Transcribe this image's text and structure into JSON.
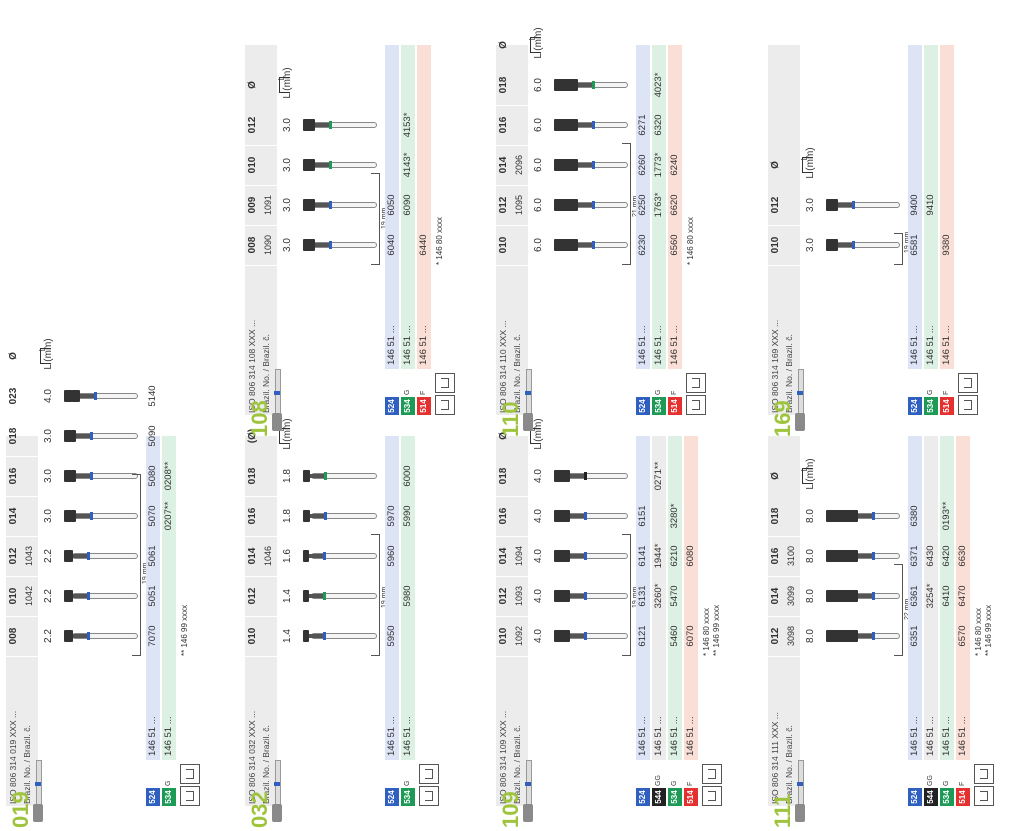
{
  "colors": {
    "c524": "#2f5fbf",
    "c534": "#1e9a57",
    "c514": "#e53030",
    "c544": "#222222",
    "blue_bg": "#dce4f6",
    "green_bg": "#dcf0e3",
    "red_bg": "#fadfd6",
    "title": "#9dc43c"
  },
  "labels": {
    "brazil_no": "Brazil. No. / Brazil. č.",
    "diameter": "Ø",
    "length": "L (mm)",
    "l": "L"
  },
  "panels": [
    {
      "id": "019",
      "iso": "ISO 806 314 019 XXX ...",
      "sizes": [
        "008",
        "010",
        "012",
        "014",
        "016",
        "018",
        "023"
      ],
      "brazil": [
        "",
        "1042",
        "1043",
        "",
        "",
        "",
        ""
      ],
      "lengths": [
        "2.2",
        "2.2",
        "2.2",
        "3.0",
        "3.0",
        "3.0",
        "4.0"
      ],
      "scale": "19 mm",
      "rows": [
        {
          "code": "524",
          "grit": "",
          "color": "blue",
          "brazil": "146 51 ...",
          "values": [
            "7070",
            "5051",
            "5061",
            "5070",
            "5080",
            "5090",
            "5140"
          ]
        },
        {
          "code": "534",
          "grit": "G",
          "color": "green",
          "brazil": "146 51 ...",
          "values": [
            "",
            "",
            "",
            "0207**",
            "0208**",
            "",
            ""
          ]
        }
      ],
      "notes": [
        "** 146 99 xxxx"
      ]
    },
    {
      "id": "032",
      "iso": "ISO 806 314 032 XXX ...",
      "sizes": [
        "010",
        "012",
        "014",
        "016",
        "018"
      ],
      "brazil": [
        "",
        "",
        "1046",
        "",
        ""
      ],
      "lengths": [
        "1.4",
        "1.4",
        "1.6",
        "1.8",
        "1.8"
      ],
      "diameter_label": "(Ø)",
      "scale": "19 mm",
      "rows": [
        {
          "code": "524",
          "grit": "",
          "color": "blue",
          "brazil": "146 51 ...",
          "values": [
            "5950",
            "",
            "5960",
            "5970",
            ""
          ]
        },
        {
          "code": "534",
          "grit": "G",
          "color": "green",
          "brazil": "146 51 ...",
          "values": [
            "",
            "5980",
            "",
            "5990",
            "6000"
          ]
        }
      ],
      "notes": []
    },
    {
      "id": "109",
      "iso": "ISO 806 314 109 XXX ...",
      "sizes": [
        "010",
        "012",
        "014",
        "016",
        "018"
      ],
      "brazil": [
        "1092",
        "1093",
        "1094",
        "",
        ""
      ],
      "lengths": [
        "4.0",
        "4.0",
        "4.0",
        "4.0",
        "4.0"
      ],
      "scale": "19 mm",
      "rows": [
        {
          "code": "524",
          "grit": "",
          "color": "blue",
          "brazil": "146 51 ...",
          "values": [
            "6121",
            "6131",
            "6141",
            "6151",
            ""
          ]
        },
        {
          "code": "544",
          "grit": "GG",
          "color": "black",
          "brazil": "146 51 ...",
          "values": [
            "",
            "3260*",
            "1944*",
            "",
            "0271**"
          ]
        },
        {
          "code": "534",
          "grit": "G",
          "color": "green",
          "brazil": "146 51 ...",
          "values": [
            "5460",
            "5470",
            "6210",
            "3280*",
            ""
          ]
        },
        {
          "code": "514",
          "grit": "F",
          "color": "red",
          "brazil": "146 51 ...",
          "values": [
            "6070",
            "",
            "6080",
            "",
            ""
          ]
        }
      ],
      "notes": [
        "* 146 80 xxxx",
        "** 146 99 xxxx"
      ]
    },
    {
      "id": "111",
      "iso": "ISO 806 314 111 XXX ...",
      "sizes": [
        "012",
        "014",
        "016",
        "018"
      ],
      "brazil": [
        "3098",
        "3099",
        "3100",
        ""
      ],
      "lengths": [
        "8.0",
        "8.0",
        "8.0",
        "8.0"
      ],
      "scale": "22 mm",
      "rows": [
        {
          "code": "524",
          "grit": "",
          "color": "blue",
          "brazil": "146 51 ...",
          "values": [
            "6351",
            "6361",
            "6371",
            "6380"
          ]
        },
        {
          "code": "544",
          "grit": "GG",
          "color": "black",
          "brazil": "146 51 ...",
          "values": [
            "",
            "3254*",
            "6430",
            ""
          ]
        },
        {
          "code": "534",
          "grit": "G",
          "color": "green",
          "brazil": "146 51 ...",
          "values": [
            "",
            "6410",
            "6420",
            "0193**"
          ]
        },
        {
          "code": "514",
          "grit": "F",
          "color": "red",
          "brazil": "146 51 ...",
          "values": [
            "6570",
            "6470",
            "6630",
            ""
          ]
        }
      ],
      "notes": [
        "* 146 80 xxxx",
        "** 146 99 xxxx"
      ]
    },
    {
      "id": "108",
      "iso": "ISO 806 314 108 XXX ...",
      "sizes": [
        "008",
        "009",
        "010",
        "012"
      ],
      "brazil": [
        "1090",
        "1091",
        "",
        ""
      ],
      "lengths": [
        "3.0",
        "3.0",
        "3.0",
        "3.0"
      ],
      "scale": "19 mm",
      "rows": [
        {
          "code": "524",
          "grit": "",
          "color": "blue",
          "brazil": "146 51 ...",
          "values": [
            "6040",
            "6050",
            "",
            ""
          ]
        },
        {
          "code": "534",
          "grit": "G",
          "color": "green",
          "brazil": "146 51 ...",
          "values": [
            "",
            "6090",
            "4143*",
            "4153*"
          ]
        },
        {
          "code": "514",
          "grit": "F",
          "color": "red",
          "brazil": "146 51 ...",
          "values": [
            "6440",
            "",
            "",
            ""
          ]
        }
      ],
      "notes": [
        "* 146 80 xxxx"
      ]
    },
    {
      "id": "110",
      "iso": "ISO 806 314 110 XXX ...",
      "sizes": [
        "010",
        "012",
        "014",
        "016",
        "018"
      ],
      "brazil": [
        "",
        "1095",
        "2096",
        "",
        ""
      ],
      "lengths": [
        "6.0",
        "6.0",
        "6.0",
        "6.0",
        "6.0"
      ],
      "scale": "21 mm",
      "rows": [
        {
          "code": "524",
          "grit": "",
          "color": "blue",
          "brazil": "146 51 ...",
          "values": [
            "6230",
            "6250",
            "6260",
            "6271",
            ""
          ]
        },
        {
          "code": "534",
          "grit": "G",
          "color": "green",
          "brazil": "146 51 ...",
          "values": [
            "",
            "1763*",
            "1773*",
            "6320",
            "4023*"
          ]
        },
        {
          "code": "514",
          "grit": "F",
          "color": "red",
          "brazil": "146 51 ...",
          "values": [
            "6560",
            "6620",
            "6240",
            "",
            ""
          ]
        }
      ],
      "notes": [
        "* 146 80 xxxx"
      ]
    },
    {
      "id": "169",
      "iso": "ISO 806 314 169 XXX ...",
      "sizes": [
        "010",
        "012"
      ],
      "brazil": [
        "",
        ""
      ],
      "lengths": [
        "3.0",
        "3.0"
      ],
      "scale": "19 mm",
      "rows": [
        {
          "code": "524",
          "grit": "",
          "color": "blue",
          "brazil": "146 51 ...",
          "values": [
            "6581",
            "9400"
          ]
        },
        {
          "code": "534",
          "grit": "G",
          "color": "green",
          "brazil": "146 51 ...",
          "values": [
            "",
            "9410"
          ]
        },
        {
          "code": "514",
          "grit": "F",
          "color": "red",
          "brazil": "146 51 ...",
          "values": [
            "9380",
            ""
          ]
        }
      ],
      "notes": []
    }
  ]
}
